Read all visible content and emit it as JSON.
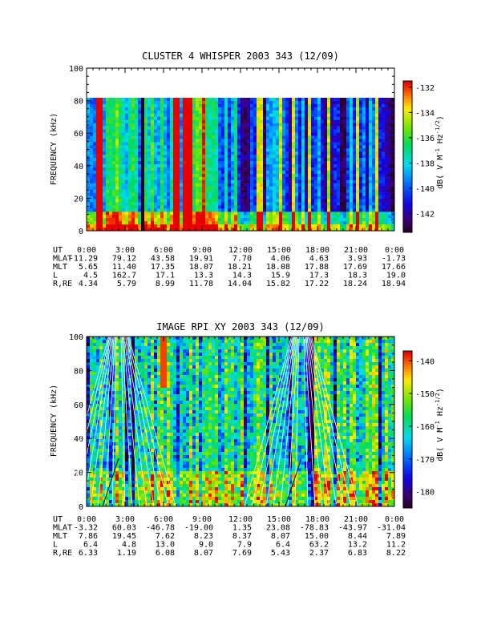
{
  "chart_data": [
    {
      "type": "heatmap",
      "title": "CLUSTER 4 WHISPER 2003 343 (12/09)",
      "ylabel": "FREQUENCY (kHz)",
      "ylim": [
        0,
        100
      ],
      "yticks": [
        "0",
        "20",
        "40",
        "60",
        "80",
        "100"
      ],
      "data_top_khz": 80,
      "colorbar": {
        "label": "dB( V M⁻¹ Hz⁻¹ᐟ²)",
        "label_main": "dB( V M",
        "label_sup": "-1",
        "label_mid": " Hz",
        "label_sup2": "-1/2",
        "label_end": ")",
        "range": [
          -143.5,
          -131.5
        ],
        "ticks": [
          "-132",
          "-134",
          "-136",
          "-138",
          "-140",
          "-142"
        ],
        "tick_values": [
          -132,
          -134,
          -136,
          -138,
          -140,
          -142
        ]
      },
      "ephemeris": {
        "row_labels": [
          "UT",
          "MLAT",
          "MLT",
          "L",
          "R,RE"
        ],
        "columns": [
          [
            "0:00",
            "-11.29",
            "5.65",
            "4.5",
            "4.34"
          ],
          [
            "3:00",
            "79.12",
            "11.40",
            "162.7",
            "5.79"
          ],
          [
            "6:00",
            "43.58",
            "17.35",
            "17.1",
            "8.99"
          ],
          [
            "9:00",
            "19.91",
            "18.07",
            "13.3",
            "11.78"
          ],
          [
            "12:00",
            "7.70",
            "18.21",
            "14.3",
            "14.04"
          ],
          [
            "15:00",
            "4.06",
            "18.08",
            "15.9",
            "15.82"
          ],
          [
            "18:00",
            "4.63",
            "17.88",
            "17.3",
            "17.22"
          ],
          [
            "21:00",
            "3.93",
            "17.69",
            "18.3",
            "18.24"
          ],
          [
            "0:00",
            "-1.73",
            "17.66",
            "19.0",
            "18.94"
          ]
        ]
      }
    },
    {
      "type": "heatmap",
      "title": "IMAGE RPI XY 2003 343 (12/09)",
      "ylabel": "FREQUENCY (kHz)",
      "ylim": [
        0,
        100
      ],
      "yticks": [
        "0",
        "20",
        "40",
        "60",
        "80",
        "100"
      ],
      "colorbar": {
        "label_main": "dB( V M",
        "label_sup": "-1",
        "label_mid": " Hz",
        "label_sup2": "-1/2",
        "label_end": ")",
        "range": [
          -185,
          -137
        ],
        "ticks": [
          "-140",
          "-150",
          "-160",
          "-170",
          "-180"
        ],
        "tick_values": [
          -140,
          -150,
          -160,
          -170,
          -180
        ]
      },
      "ephemeris": {
        "row_labels": [
          "UT",
          "MLAT",
          "MLT",
          "L",
          "R,RE"
        ],
        "columns": [
          [
            "0:00",
            "-3.32",
            "7.86",
            "6.4",
            "6.33"
          ],
          [
            "3:00",
            "60.03",
            "19.45",
            "4.8",
            "1.19"
          ],
          [
            "6:00",
            "-46.78",
            "7.62",
            "13.0",
            "6.08"
          ],
          [
            "9:00",
            "-19.00",
            "8.23",
            "9.0",
            "8.07"
          ],
          [
            "12:00",
            "1.35",
            "8.37",
            "7.9",
            "7.69"
          ],
          [
            "15:00",
            "23.08",
            "8.07",
            "6.4",
            "5.43"
          ],
          [
            "18:00",
            "-78.83",
            "15.00",
            "63.2",
            "2.37"
          ],
          [
            "21:00",
            "-43.97",
            "8.44",
            "13.2",
            "6.83"
          ],
          [
            "0:00",
            "-31.04",
            "7.89",
            "11.2",
            "8.22"
          ]
        ]
      }
    }
  ]
}
